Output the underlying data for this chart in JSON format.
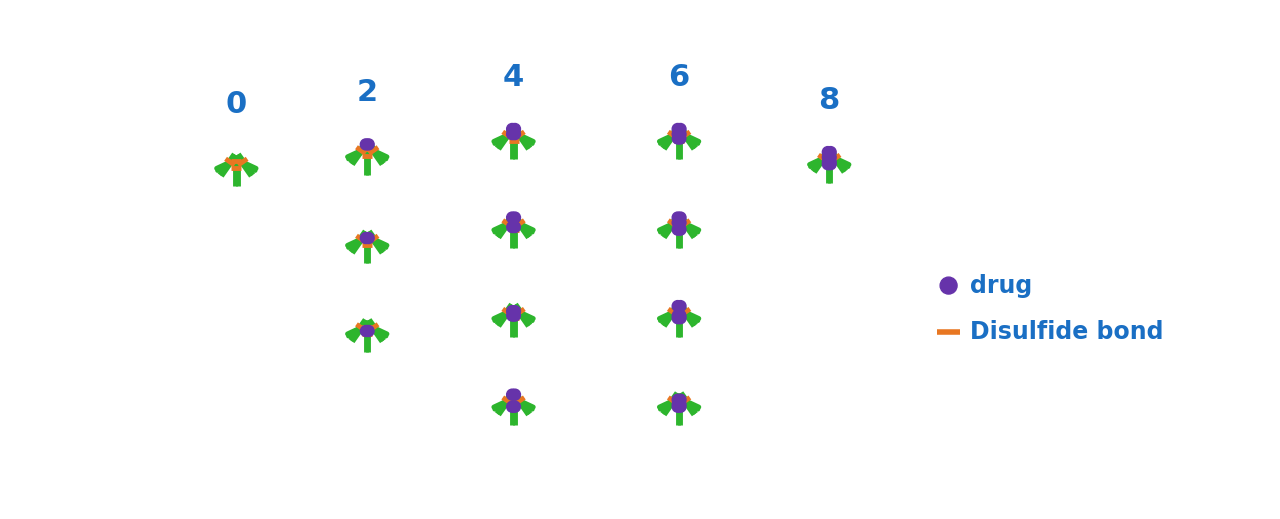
{
  "green": "#2db52d",
  "purple": "#6633aa",
  "orange": "#e87722",
  "blue": "#1a6fc4",
  "bg": "#ffffff",
  "lw": 3.5,
  "dar_labels": [
    "0",
    "2",
    "4",
    "6",
    "8"
  ],
  "legend_drug_label": "drug",
  "legend_ds_label": "Disulfide bond"
}
